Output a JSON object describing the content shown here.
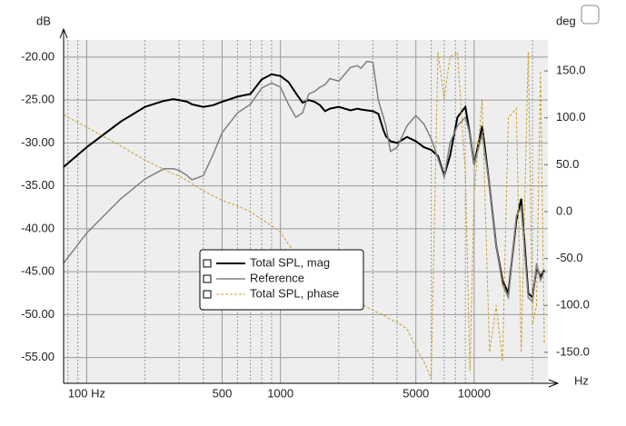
{
  "chart_data": {
    "type": "line",
    "y_label": "dB",
    "y2_label": "deg",
    "x_label": "Hz",
    "x": [
      76,
      100,
      150,
      200,
      250,
      280,
      300,
      330,
      350,
      400,
      450,
      500,
      600,
      700,
      800,
      900,
      1000,
      1100,
      1200,
      1300,
      1400,
      1500,
      1600,
      1700,
      1800,
      2000,
      2300,
      2500,
      2600,
      2800,
      3000,
      3200,
      3400,
      3500,
      3700,
      4000,
      4500,
      5000,
      5500,
      6000,
      6500,
      7000,
      7500,
      8200,
      9000,
      9500,
      10000,
      11000,
      12000,
      13000,
      14000,
      15000,
      16500,
      17500,
      19000,
      20000,
      21000,
      22000,
      23000
    ],
    "series": [
      {
        "name": "Total SPL, mag",
        "color": "#000000",
        "width": 2,
        "dash": false,
        "values": [
          -32.8,
          -30.5,
          -27.5,
          -25.8,
          -25.1,
          -24.9,
          -25.0,
          -25.2,
          -25.5,
          -25.8,
          -25.6,
          -25.2,
          -24.6,
          -24.3,
          -22.6,
          -22.0,
          -22.2,
          -22.9,
          -24.2,
          -25.3,
          -25.0,
          -25.2,
          -25.6,
          -26.3,
          -26.0,
          -25.8,
          -26.2,
          -26.0,
          -26.1,
          -26.2,
          -26.3,
          -26.6,
          -28.5,
          -29.2,
          -29.8,
          -30.0,
          -29.3,
          -29.8,
          -30.5,
          -30.8,
          -31.5,
          -33.8,
          -31.5,
          -27.0,
          -25.8,
          -29.0,
          -32.5,
          -28.0,
          -35.0,
          -42.0,
          -46.0,
          -47.5,
          -39.0,
          -36.5,
          -47.5,
          -48.0,
          -44.5,
          -45.6,
          -44.8
        ]
      },
      {
        "name": "Reference",
        "color": "#808080",
        "width": 1.5,
        "dash": false,
        "values": [
          -44,
          -40.5,
          -36.5,
          -34.2,
          -33.0,
          -33.0,
          -33.2,
          -33.8,
          -34.3,
          -33.8,
          -31.3,
          -28.8,
          -26.5,
          -25.5,
          -23.6,
          -23.0,
          -23.5,
          -25.5,
          -27.0,
          -26.5,
          -24.3,
          -24.0,
          -23.5,
          -23.2,
          -22.5,
          -22.8,
          -21.2,
          -21.0,
          -21.3,
          -20.5,
          -20.6,
          -25.0,
          -27.0,
          -28.0,
          -31.0,
          -30.5,
          -28.0,
          -26.8,
          -27.8,
          -29.5,
          -31.8,
          -34.0,
          -30.0,
          -28.0,
          -27.0,
          -29.0,
          -32.5,
          -29.0,
          -35.0,
          -42.0,
          -46.5,
          -48.0,
          -38.5,
          -37.5,
          -48.0,
          -48.5,
          -44.0,
          -46.0,
          -45.0
        ]
      },
      {
        "name": "Total SPL, phase",
        "color": "#c8a030",
        "width": 1,
        "dash": true,
        "axis": "y2",
        "values": [
          103,
          90,
          70,
          55,
          45,
          40,
          38,
          33,
          30,
          22,
          17,
          12,
          6,
          0,
          -8,
          -15,
          -22,
          -35,
          -45,
          -52,
          -56,
          -60,
          -65,
          -70,
          -73,
          -80,
          -90,
          -95,
          -98,
          -102,
          -105,
          -108,
          -110,
          -112,
          -115,
          -118,
          -125,
          -145,
          -160,
          -178,
          170,
          120,
          165,
          170,
          40,
          -170,
          20,
          120,
          -150,
          -100,
          -160,
          100,
          110,
          -150,
          170,
          -120,
          -100,
          150,
          -140
        ]
      }
    ],
    "x_log": true,
    "xlim": [
      76,
      24000
    ],
    "xticks": [
      {
        "value": 100,
        "label": "100 Hz"
      },
      500,
      1000,
      5000,
      10000
    ],
    "x_grid": [
      80,
      90,
      200,
      300,
      400,
      600,
      700,
      800,
      900,
      2000,
      3000,
      4000,
      6000,
      7000,
      8000,
      9000,
      20000
    ],
    "ylim": [
      -58,
      -18
    ],
    "yticks": [
      {
        "value": -20,
        "label": "-20.00"
      },
      {
        "value": -25,
        "label": "-25.00"
      },
      {
        "value": -30,
        "label": "-30.00"
      },
      {
        "value": -35,
        "label": "-35.00"
      },
      {
        "value": -40,
        "label": "-40.00"
      },
      {
        "value": -45,
        "label": "-45.00"
      },
      {
        "value": -50,
        "label": "-50.00"
      },
      {
        "value": -55,
        "label": "-55.00"
      }
    ],
    "y2lim": [
      -183,
      183
    ],
    "y2ticks": [
      {
        "value": 150,
        "label": "150.0"
      },
      {
        "value": 100,
        "label": "100.0"
      },
      {
        "value": 50,
        "label": "50.0"
      },
      {
        "value": 0,
        "label": "0.0"
      },
      {
        "value": -50,
        "label": "-50.0"
      },
      {
        "value": -100,
        "label": "-100.0"
      },
      {
        "value": -150,
        "label": "-150.0"
      }
    ],
    "grid": true
  }
}
